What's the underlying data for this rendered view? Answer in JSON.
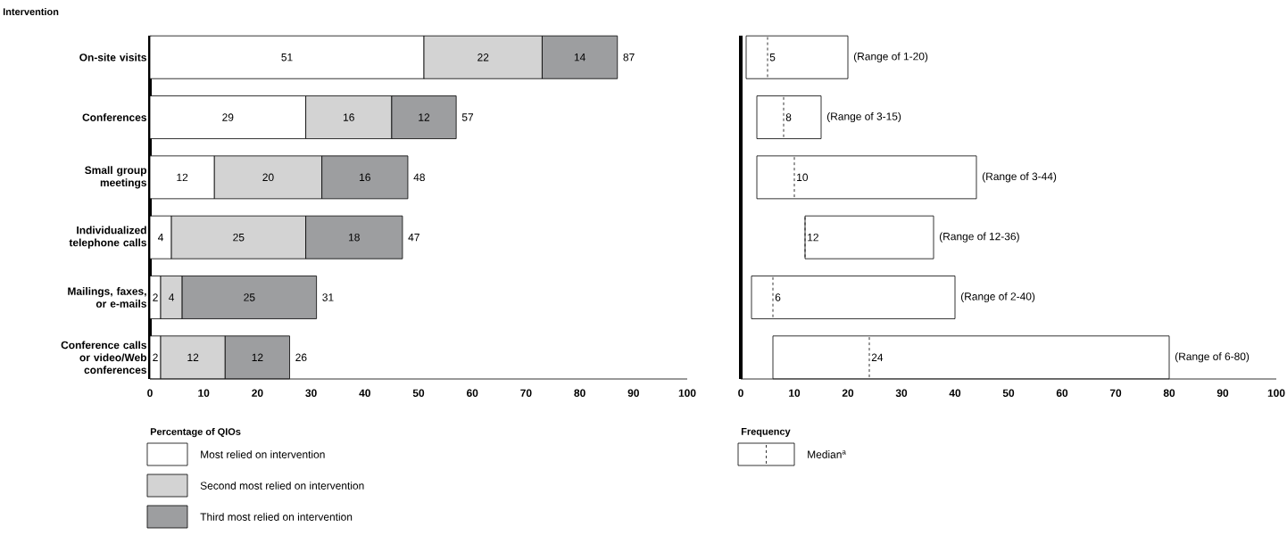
{
  "chart_data": [
    {
      "type": "bar",
      "orientation": "horizontal",
      "stacked": true,
      "ylabel": "Intervention",
      "xlabel": "Percentage of QIOs",
      "categories": [
        "On-site visits",
        "Conferences",
        "Small group meetings",
        "Individualized telephone calls",
        "Mailings, faxes, or e-mails",
        "Conference calls or video/Web conferences"
      ],
      "series": [
        {
          "name": "Most relied on intervention",
          "color": "#ffffff",
          "values": [
            51,
            29,
            12,
            4,
            2,
            2
          ]
        },
        {
          "name": "Second most relied on intervention",
          "color": "#d3d3d3",
          "values": [
            22,
            16,
            20,
            25,
            4,
            12
          ]
        },
        {
          "name": "Third most relied on intervention",
          "color": "#9d9ea0",
          "values": [
            14,
            12,
            16,
            18,
            25,
            12
          ]
        }
      ],
      "data_labels": true,
      "totals": [
        "87",
        "57",
        "48",
        "47",
        "31",
        "26"
      ],
      "xlim": [
        0,
        100
      ],
      "xticks": [
        0,
        10,
        20,
        30,
        40,
        50,
        60,
        70,
        80,
        90,
        100
      ],
      "legend": "bottom"
    },
    {
      "type": "box",
      "orientation": "horizontal",
      "xlabel": "Frequency",
      "tick_labels": "x",
      "categories": [
        null,
        null,
        null,
        null,
        null,
        null
      ],
      "series": [
        {
          "name": "Median$^{a}$",
          "color": "#ffffff",
          "line_style": "dashed",
          "boxes": [
            {
              "low": 1,
              "q1": 1,
              "median": 5,
              "q3": 20,
              "high": 20
            },
            {
              "low": 3,
              "q1": 3,
              "median": 8,
              "q3": 15,
              "high": 15
            },
            {
              "low": 3,
              "q1": 3,
              "median": 10,
              "q3": 44,
              "high": 44
            },
            {
              "low": 12,
              "q1": 12,
              "median": 12,
              "q3": 36,
              "high": 36
            },
            {
              "low": 2,
              "q1": 2,
              "median": 6,
              "q3": 40,
              "high": 40
            },
            {
              "low": 6,
              "q1": 6,
              "median": 24,
              "q3": 80,
              "high": 80
            }
          ]
        }
      ],
      "annotations": [
        {
          "text": "(Range of 1-20)",
          "x": 20
        },
        {
          "text": "(Range of 3-15)",
          "x": 15
        },
        {
          "text": "(Range of 3-44)",
          "x": 44
        },
        {
          "text": "(Range of 12-36)",
          "x": 36
        },
        {
          "text": "(Range of 2-40)",
          "x": 40
        },
        {
          "text": "(Range of 6-80)",
          "x": 80
        },
        {
          "text": "5",
          "x": 5
        },
        {
          "text": "8",
          "x": 8
        },
        {
          "text": "10",
          "x": 10
        },
        {
          "text": "12",
          "x": 12
        },
        {
          "text": "6",
          "x": 6
        },
        {
          "text": "24",
          "x": 24
        }
      ],
      "xlim": [
        0,
        100
      ],
      "xticks": [
        0,
        10,
        20,
        30,
        40,
        50,
        60,
        70,
        80,
        90,
        100
      ],
      "legend": "bottom"
    }
  ]
}
